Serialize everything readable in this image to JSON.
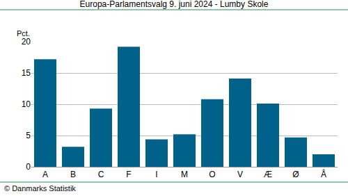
{
  "chart_data": {
    "type": "bar",
    "title": "Europa-Parlamentsvalg 9. juni 2024 - Lumby Skole",
    "y_label": "Pct.",
    "source": "© Danmarks Statistik",
    "categories": [
      "A",
      "B",
      "C",
      "F",
      "I",
      "M",
      "O",
      "V",
      "Æ",
      "Ø",
      "Å"
    ],
    "values": [
      17.2,
      3.2,
      9.3,
      19.2,
      4.4,
      5.2,
      10.8,
      14.1,
      10.1,
      4.7,
      2.0
    ],
    "color": "#00628b",
    "ylim": [
      0,
      20
    ],
    "yticks": [
      0,
      5,
      10,
      15,
      20
    ],
    "grid": true
  }
}
